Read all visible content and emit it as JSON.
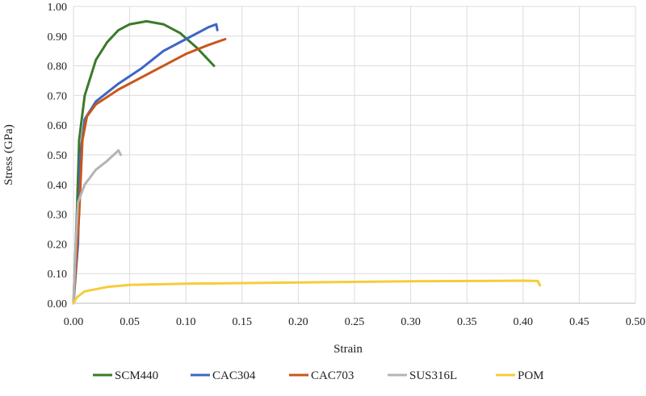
{
  "chart_data": {
    "type": "line",
    "xlabel": "Strain",
    "ylabel": "Stress (GPa)",
    "xlim": [
      0,
      0.5
    ],
    "ylim": [
      0,
      1.0
    ],
    "xticks": [
      "0.00",
      "0.05",
      "0.10",
      "0.15",
      "0.20",
      "0.25",
      "0.30",
      "0.35",
      "0.40",
      "0.45",
      "0.50"
    ],
    "yticks": [
      "0.00",
      "0.10",
      "0.20",
      "0.30",
      "0.40",
      "0.50",
      "0.60",
      "0.70",
      "0.80",
      "0.90",
      "1.00"
    ],
    "grid": true,
    "legend_position": "bottom",
    "series": [
      {
        "name": "SCM440",
        "color": "#3b7a2a",
        "points": [
          [
            0,
            0
          ],
          [
            0.003,
            0.3
          ],
          [
            0.005,
            0.55
          ],
          [
            0.01,
            0.7
          ],
          [
            0.02,
            0.82
          ],
          [
            0.03,
            0.88
          ],
          [
            0.04,
            0.92
          ],
          [
            0.05,
            0.94
          ],
          [
            0.065,
            0.95
          ],
          [
            0.08,
            0.94
          ],
          [
            0.095,
            0.91
          ],
          [
            0.11,
            0.86
          ],
          [
            0.125,
            0.8
          ]
        ]
      },
      {
        "name": "CAC304",
        "color": "#3d66c4",
        "points": [
          [
            0,
            0
          ],
          [
            0.004,
            0.2
          ],
          [
            0.006,
            0.5
          ],
          [
            0.01,
            0.62
          ],
          [
            0.02,
            0.68
          ],
          [
            0.04,
            0.74
          ],
          [
            0.06,
            0.79
          ],
          [
            0.08,
            0.85
          ],
          [
            0.1,
            0.89
          ],
          [
            0.12,
            0.93
          ],
          [
            0.127,
            0.94
          ],
          [
            0.128,
            0.92
          ]
        ]
      },
      {
        "name": "CAC703",
        "color": "#c9561a",
        "points": [
          [
            0,
            0
          ],
          [
            0.005,
            0.3
          ],
          [
            0.008,
            0.55
          ],
          [
            0.012,
            0.63
          ],
          [
            0.02,
            0.67
          ],
          [
            0.04,
            0.72
          ],
          [
            0.06,
            0.76
          ],
          [
            0.08,
            0.8
          ],
          [
            0.1,
            0.84
          ],
          [
            0.12,
            0.87
          ],
          [
            0.135,
            0.89
          ]
        ]
      },
      {
        "name": "SUS316L",
        "color": "#b4b4b4",
        "points": [
          [
            0,
            0
          ],
          [
            0.002,
            0.2
          ],
          [
            0.004,
            0.34
          ],
          [
            0.01,
            0.4
          ],
          [
            0.02,
            0.45
          ],
          [
            0.03,
            0.48
          ],
          [
            0.04,
            0.515
          ],
          [
            0.042,
            0.5
          ]
        ]
      },
      {
        "name": "POM",
        "color": "#f5cd3a",
        "points": [
          [
            0,
            0
          ],
          [
            0.003,
            0.02
          ],
          [
            0.01,
            0.04
          ],
          [
            0.03,
            0.055
          ],
          [
            0.05,
            0.062
          ],
          [
            0.1,
            0.066
          ],
          [
            0.2,
            0.07
          ],
          [
            0.3,
            0.074
          ],
          [
            0.4,
            0.076
          ],
          [
            0.413,
            0.075
          ],
          [
            0.415,
            0.06
          ]
        ]
      }
    ]
  }
}
